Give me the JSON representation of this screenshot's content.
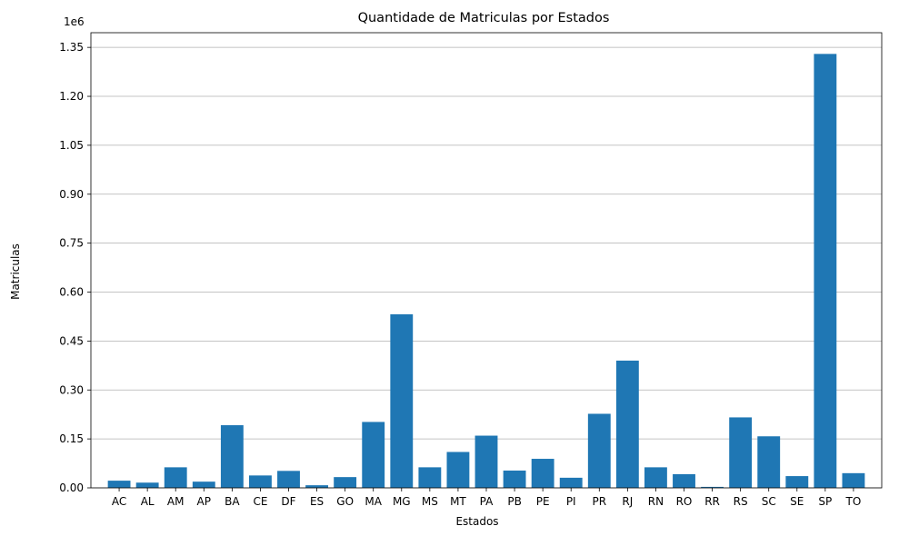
{
  "chart_data": {
    "type": "bar",
    "title": "Quantidade de Matriculas por Estados",
    "xlabel": "Estados",
    "ylabel": "Matriculas",
    "offset_label": "1e6",
    "categories": [
      "AC",
      "AL",
      "AM",
      "AP",
      "BA",
      "CE",
      "DF",
      "ES",
      "GO",
      "MA",
      "MG",
      "MS",
      "MT",
      "PA",
      "PB",
      "PE",
      "PI",
      "PR",
      "RJ",
      "RN",
      "RO",
      "RR",
      "RS",
      "SC",
      "SE",
      "SP",
      "TO"
    ],
    "values": [
      22000,
      16000,
      63000,
      19000,
      192000,
      38000,
      52000,
      8000,
      33000,
      202000,
      532000,
      63000,
      110000,
      160000,
      53000,
      89000,
      31000,
      227000,
      390000,
      63000,
      42000,
      3000,
      216000,
      158000,
      36000,
      1330000,
      45000
    ],
    "ylim": [
      0,
      1395000
    ],
    "yticks": [
      0,
      150000,
      300000,
      450000,
      600000,
      750000,
      900000,
      1050000,
      1200000,
      1350000
    ],
    "ytick_labels": [
      "0.00",
      "0.15",
      "0.30",
      "0.45",
      "0.60",
      "0.75",
      "0.90",
      "1.05",
      "1.20",
      "1.35"
    ],
    "grid": "y",
    "bar_color": "#1f77b4",
    "grid_color": "#b0b0b0"
  }
}
